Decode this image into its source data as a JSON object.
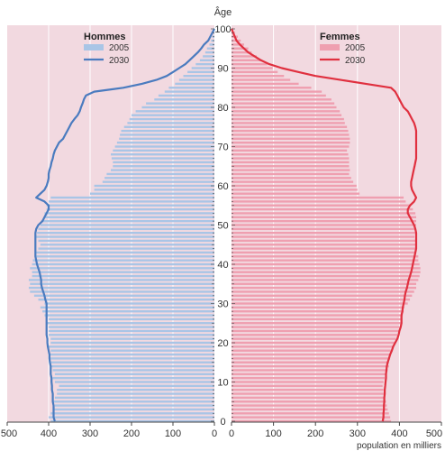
{
  "chart_data": {
    "type": "bar",
    "subtype": "population-pyramid",
    "title": "",
    "age_axis_label": "Âge",
    "x_axis_label": "population en milliers",
    "x_ticks_left": [
      "500",
      "400",
      "300",
      "200",
      "100",
      "0"
    ],
    "x_ticks_right": [
      "0",
      "100",
      "200",
      "300",
      "400",
      "500"
    ],
    "xlim": [
      0,
      500
    ],
    "age_ticks": [
      0,
      10,
      20,
      30,
      40,
      50,
      60,
      70,
      80,
      90,
      100
    ],
    "age_range": [
      0,
      100
    ],
    "grid": true,
    "colors": {
      "background": "#f2d9e0",
      "grid": "#ffffff",
      "men_2005": "#a9c5e6",
      "men_2030": "#4a7bbf",
      "women_2005": "#ef9fb0",
      "women_2030": "#e0303f"
    },
    "legend_men": {
      "title": "Hommes",
      "items": [
        "2005",
        "2030"
      ]
    },
    "legend_women": {
      "title": "Femmes",
      "items": [
        "2005",
        "2030"
      ]
    },
    "ages": [
      0,
      1,
      2,
      3,
      4,
      5,
      6,
      7,
      8,
      9,
      10,
      11,
      12,
      13,
      14,
      15,
      16,
      17,
      18,
      19,
      20,
      21,
      22,
      23,
      24,
      25,
      26,
      27,
      28,
      29,
      30,
      31,
      32,
      33,
      34,
      35,
      36,
      37,
      38,
      39,
      40,
      41,
      42,
      43,
      44,
      45,
      46,
      47,
      48,
      49,
      50,
      51,
      52,
      53,
      54,
      55,
      56,
      57,
      58,
      59,
      60,
      61,
      62,
      63,
      64,
      65,
      66,
      67,
      68,
      69,
      70,
      71,
      72,
      73,
      74,
      75,
      76,
      77,
      78,
      79,
      80,
      81,
      82,
      83,
      84,
      85,
      86,
      87,
      88,
      89,
      90,
      91,
      92,
      93,
      94,
      95,
      96,
      97,
      98,
      99,
      100
    ],
    "series": [
      {
        "name": "Hommes 2005",
        "values": [
          395,
          400,
          395,
          390,
          385,
          390,
          385,
          380,
          380,
          375,
          385,
          390,
          385,
          390,
          395,
          395,
          400,
          400,
          395,
          400,
          395,
          395,
          400,
          400,
          400,
          405,
          400,
          410,
          415,
          420,
          410,
          425,
          435,
          445,
          448,
          445,
          448,
          440,
          440,
          445,
          440,
          438,
          430,
          430,
          425,
          420,
          425,
          430,
          428,
          425,
          420,
          418,
          410,
          410,
          405,
          405,
          400,
          395,
          300,
          290,
          290,
          270,
          265,
          260,
          250,
          245,
          245,
          248,
          250,
          245,
          240,
          235,
          230,
          228,
          225,
          218,
          210,
          205,
          200,
          190,
          175,
          165,
          145,
          135,
          120,
          110,
          95,
          85,
          75,
          65,
          55,
          45,
          35,
          28,
          22,
          18,
          12,
          8,
          5,
          3,
          2
        ]
      },
      {
        "name": "Hommes 2030",
        "values": [
          385,
          388,
          388,
          388,
          388,
          390,
          390,
          390,
          392,
          392,
          393,
          393,
          395,
          395,
          395,
          397,
          398,
          398,
          400,
          402,
          403,
          403,
          405,
          405,
          405,
          405,
          405,
          405,
          405,
          405,
          405,
          408,
          410,
          413,
          416,
          418,
          418,
          420,
          422,
          425,
          428,
          430,
          432,
          432,
          432,
          432,
          432,
          432,
          432,
          430,
          425,
          415,
          410,
          405,
          400,
          400,
          410,
          430,
          420,
          410,
          405,
          402,
          400,
          400,
          398,
          395,
          393,
          390,
          388,
          385,
          380,
          375,
          365,
          360,
          355,
          350,
          345,
          338,
          330,
          325,
          322,
          318,
          315,
          310,
          290,
          220,
          175,
          140,
          115,
          100,
          85,
          70,
          60,
          50,
          40,
          32,
          25,
          15,
          10,
          5,
          0
        ]
      },
      {
        "name": "Femmes 2005",
        "values": [
          380,
          378,
          375,
          372,
          370,
          368,
          365,
          365,
          362,
          360,
          362,
          365,
          368,
          372,
          375,
          375,
          378,
          380,
          382,
          385,
          388,
          392,
          395,
          398,
          400,
          403,
          405,
          408,
          410,
          412,
          420,
          425,
          430,
          435,
          440,
          440,
          445,
          448,
          450,
          450,
          448,
          445,
          445,
          440,
          440,
          440,
          438,
          436,
          438,
          440,
          440,
          440,
          440,
          438,
          432,
          425,
          415,
          410,
          305,
          300,
          298,
          290,
          285,
          280,
          282,
          280,
          280,
          280,
          278,
          275,
          280,
          282,
          282,
          280,
          278,
          275,
          270,
          268,
          262,
          258,
          250,
          245,
          238,
          225,
          215,
          190,
          160,
          140,
          125,
          110,
          98,
          85,
          72,
          60,
          48,
          40,
          30,
          22,
          15,
          8,
          5
        ]
      },
      {
        "name": "Femmes 2030",
        "values": [
          360,
          362,
          362,
          363,
          363,
          364,
          364,
          365,
          365,
          366,
          367,
          368,
          368,
          369,
          370,
          372,
          375,
          378,
          382,
          385,
          390,
          395,
          398,
          400,
          403,
          405,
          405,
          405,
          407,
          408,
          410,
          412,
          413,
          415,
          418,
          420,
          422,
          425,
          428,
          430,
          432,
          434,
          436,
          438,
          440,
          440,
          440,
          440,
          440,
          438,
          435,
          430,
          425,
          420,
          420,
          425,
          435,
          440,
          435,
          430,
          428,
          428,
          430,
          432,
          434,
          436,
          438,
          440,
          440,
          440,
          440,
          440,
          440,
          440,
          440,
          438,
          435,
          430,
          425,
          420,
          410,
          405,
          400,
          395,
          390,
          380,
          320,
          260,
          200,
          160,
          120,
          90,
          70,
          55,
          40,
          30,
          20,
          12,
          8,
          4,
          0
        ]
      }
    ]
  }
}
